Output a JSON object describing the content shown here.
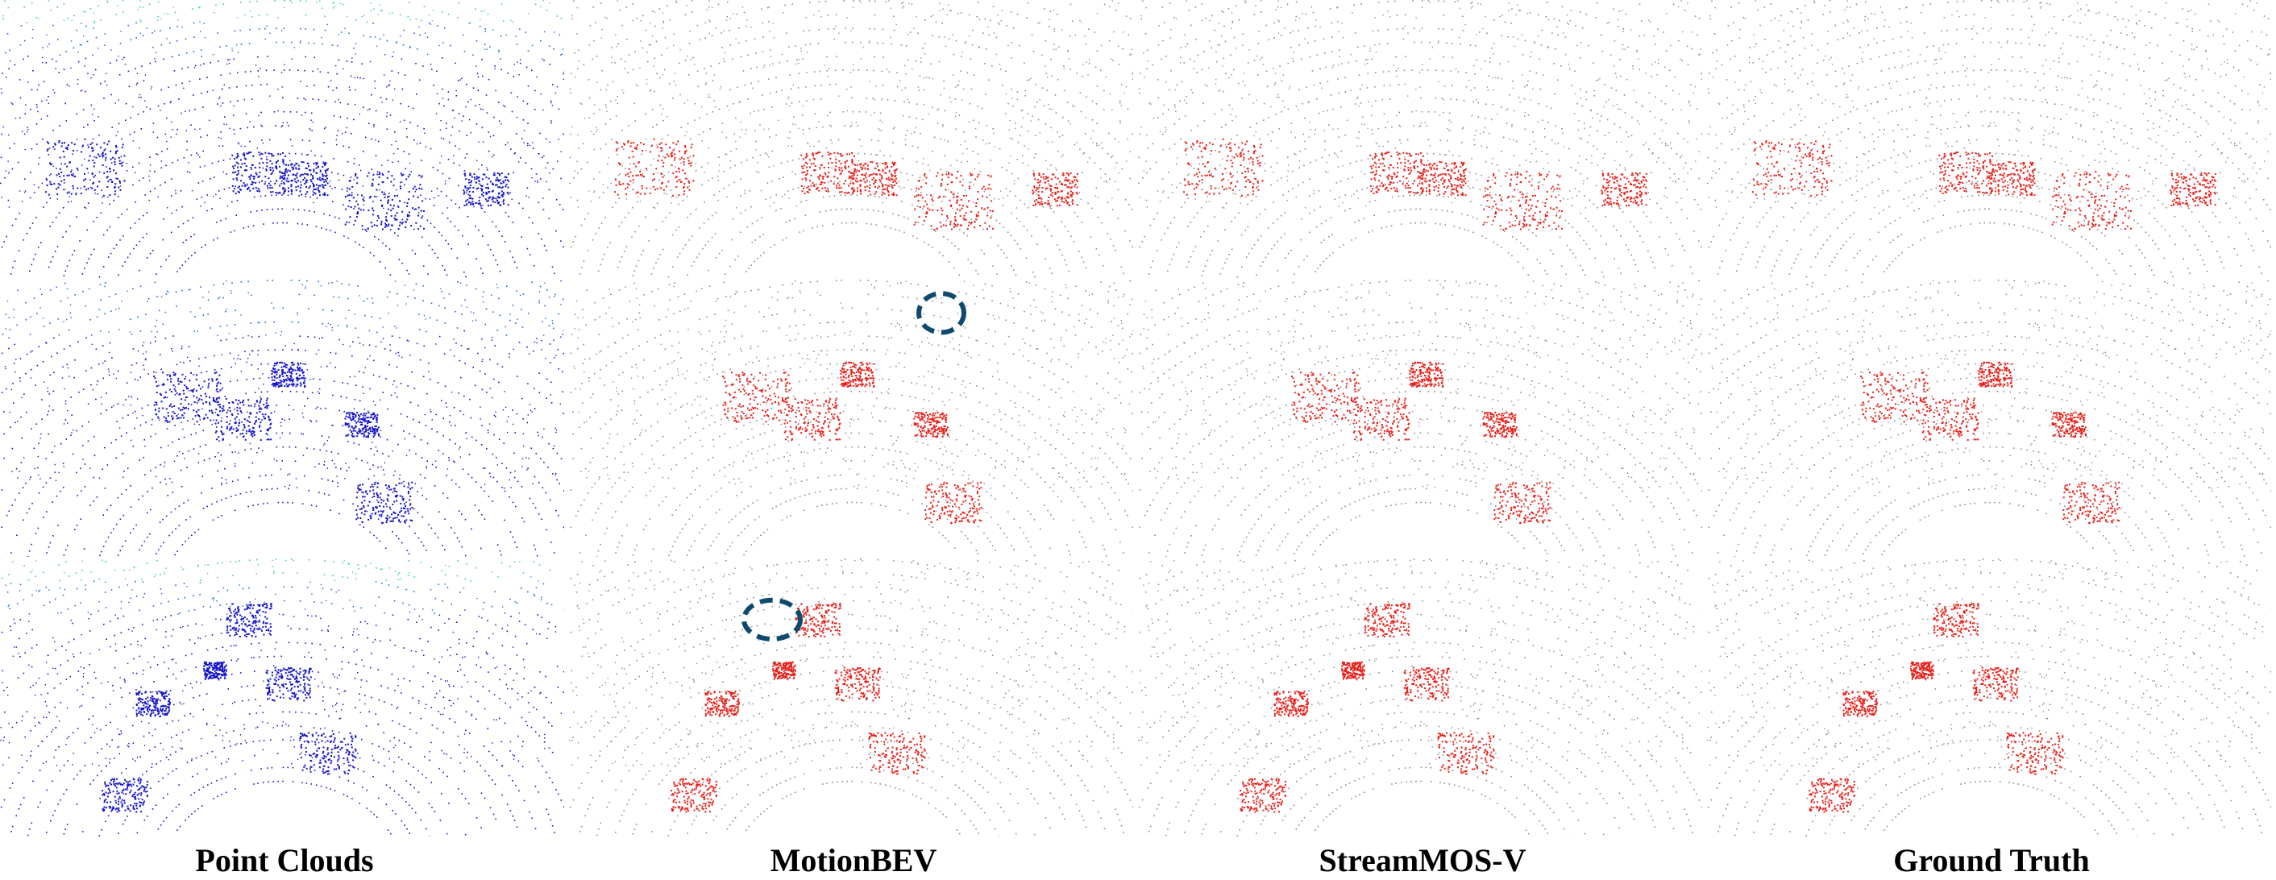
{
  "columns": [
    {
      "id": "point-clouds",
      "label": "Point Clouds",
      "style": "height"
    },
    {
      "id": "motionbev",
      "label": "MotionBEV",
      "style": "seg"
    },
    {
      "id": "streammos-v",
      "label": "StreamMOS-V",
      "style": "seg"
    },
    {
      "id": "ground-truth",
      "label": "Ground Truth",
      "style": "seg"
    }
  ],
  "rows": 3,
  "colors": {
    "static": "#8c8c8c",
    "moving": "#e8201a",
    "cloud_low": "#1414c8",
    "cloud_mid": "#1e64dc",
    "cloud_high": "#3cc8b4",
    "highlight": "#0d4a6e"
  },
  "highlights": [
    {
      "column": 1,
      "row": 1,
      "label": "MotionBEV false-negative region (row 2)"
    },
    {
      "column": 1,
      "row": 2,
      "label": "MotionBEV false-negative region (row 3)"
    }
  ]
}
